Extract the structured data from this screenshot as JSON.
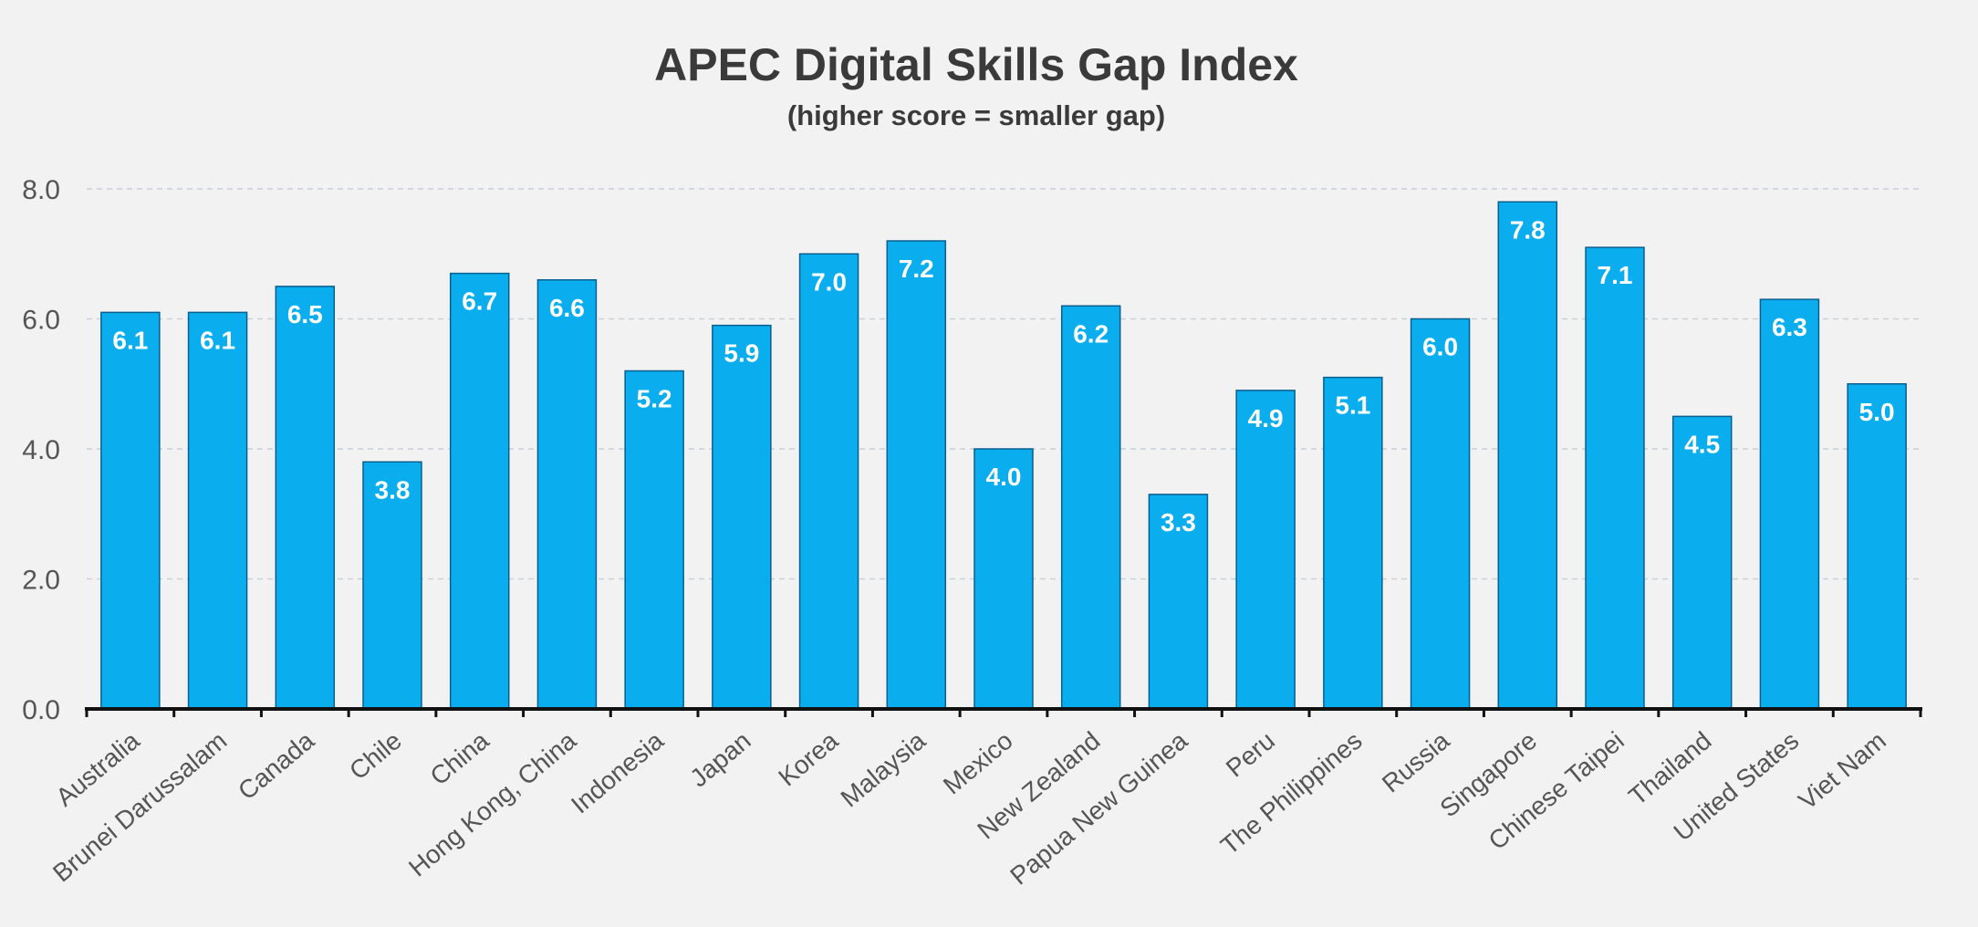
{
  "chart_data": {
    "type": "bar",
    "title": "APEC Digital Skills Gap Index",
    "subtitle": "(higher score = smaller gap)",
    "xlabel": "",
    "ylabel": "",
    "ylim": [
      0,
      8
    ],
    "yticks": [
      "0.0",
      "2.0",
      "4.0",
      "6.0",
      "8.0"
    ],
    "grid": true,
    "bar_color": "#0aaeef",
    "bar_edge_color": "#0b5f8f",
    "categories": [
      "Australia",
      "Brunei Darussalam",
      "Canada",
      "Chile",
      "China",
      "Hong Kong, China",
      "Indonesia",
      "Japan",
      "Korea",
      "Malaysia",
      "Mexico",
      "New Zealand",
      "Papua New Guinea",
      "Peru",
      "The Philippines",
      "Russia",
      "Singapore",
      "Chinese Taipei",
      "Thailand",
      "United States",
      "Viet Nam"
    ],
    "values": [
      6.1,
      6.1,
      6.5,
      3.8,
      6.7,
      6.6,
      5.2,
      5.9,
      7.0,
      7.2,
      4.0,
      6.2,
      3.3,
      4.9,
      5.1,
      6.0,
      7.8,
      7.1,
      4.5,
      6.3,
      5.0
    ],
    "data_labels": [
      "6.1",
      "6.1",
      "6.5",
      "3.8",
      "6.7",
      "6.6",
      "5.2",
      "5.9",
      "7.0",
      "7.2",
      "4.0",
      "6.2",
      "3.3",
      "4.9",
      "5.1",
      "6.0",
      "7.8",
      "7.1",
      "4.5",
      "6.3",
      "5.0"
    ]
  }
}
